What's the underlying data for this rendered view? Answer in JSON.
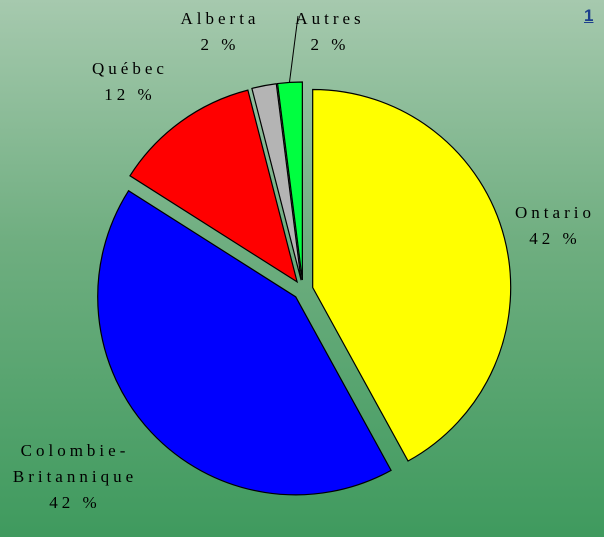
{
  "chart_data": {
    "type": "pie",
    "annotation": "1",
    "categories": [
      "Ontario",
      "Colombie-Britannique",
      "Québec",
      "Alberta",
      "Autres"
    ],
    "values": [
      42,
      42,
      12,
      2,
      2
    ],
    "value_labels": [
      "42 %",
      "42 %",
      "12 %",
      "2 %",
      "2 %"
    ],
    "colors": [
      "#ffff00",
      "#0000ff",
      "#ff0000",
      "#b4b4b4",
      "#00ff40"
    ],
    "start_angle": 0,
    "direction": "clockwise",
    "exploded": true
  }
}
